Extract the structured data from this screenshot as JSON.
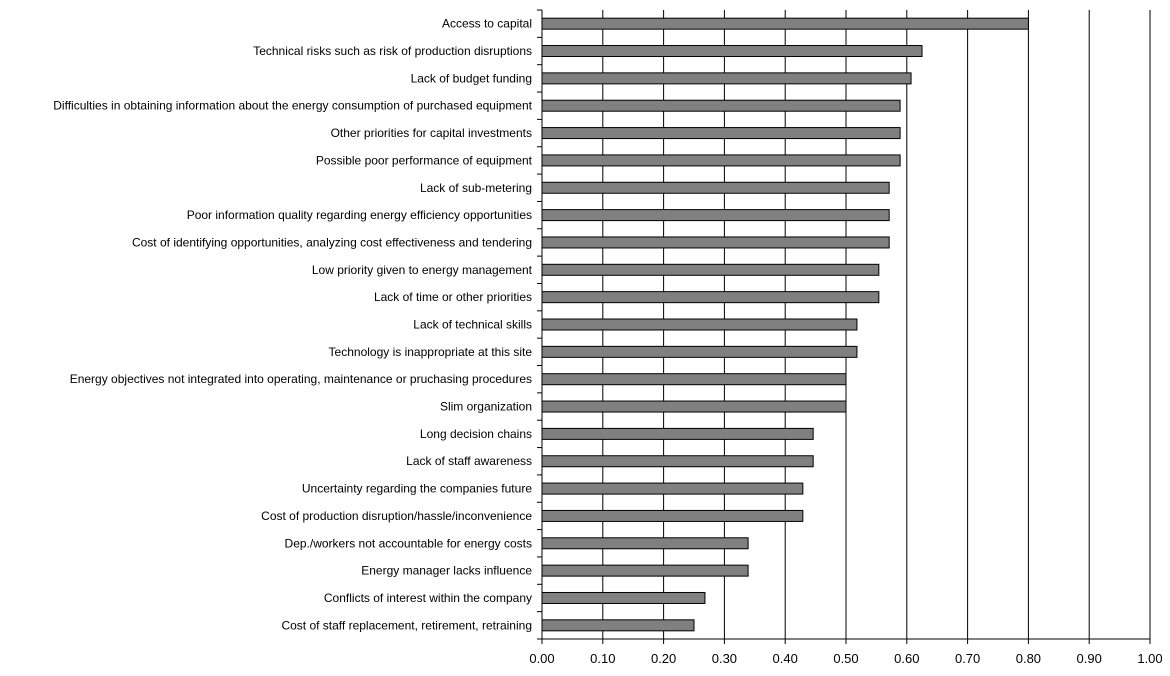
{
  "chart_data": {
    "type": "bar",
    "orientation": "horizontal",
    "title": "",
    "xlabel": "",
    "ylabel": "",
    "xlim": [
      0,
      1
    ],
    "xticks": [
      "0.00",
      "0.10",
      "0.20",
      "0.30",
      "0.40",
      "0.50",
      "0.60",
      "0.70",
      "0.80",
      "0.90",
      "1.00"
    ],
    "grid": "vertical",
    "legend": "none",
    "bar_color": "#808080",
    "categories": [
      "Access to capital",
      "Technical risks such as risk of production disruptions",
      "Lack of budget funding",
      "Difficulties in obtaining information about the energy consumption of purchased equipment",
      "Other priorities for capital investments",
      "Possible poor performance of equipment",
      "Lack of sub-metering",
      "Poor information quality regarding energy efficiency opportunities",
      "Cost of identifying opportunities, analyzing cost effectiveness and tendering",
      "Low priority given to energy management",
      "Lack of time or other priorities",
      "Lack of technical skills",
      "Technology is inappropriate at this site",
      "Energy objectives not integrated into operating, maintenance or pruchasing procedures",
      "Slim organization",
      "Long decision chains",
      "Lack of staff awareness",
      "Uncertainty regarding the companies future",
      "Cost of production disruption/hassle/inconvenience",
      "Dep./workers not accountable for energy costs",
      "Energy manager lacks influence",
      "Conflicts of interest within the company",
      "Cost of staff replacement, retirement, retraining"
    ],
    "values": [
      0.8,
      0.625,
      0.607,
      0.589,
      0.589,
      0.589,
      0.571,
      0.571,
      0.571,
      0.554,
      0.554,
      0.518,
      0.518,
      0.5,
      0.5,
      0.446,
      0.446,
      0.429,
      0.429,
      0.339,
      0.339,
      0.268,
      0.25
    ]
  }
}
